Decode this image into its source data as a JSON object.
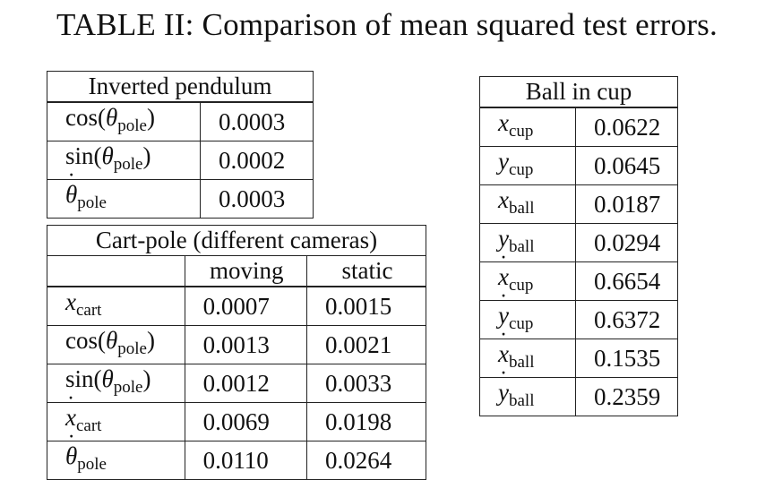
{
  "caption": "TABLE II: Comparison of mean squared test errors.",
  "inverted_pendulum": {
    "title": "Inverted pendulum",
    "rows": [
      {
        "fn": "cos",
        "var": "θ",
        "sub": "pole",
        "dot": false,
        "value": "0.0003"
      },
      {
        "fn": "sin",
        "var": "θ",
        "sub": "pole",
        "dot": false,
        "value": "0.0002"
      },
      {
        "fn": "",
        "var": "θ",
        "sub": "pole",
        "dot": true,
        "value": "0.0003"
      }
    ]
  },
  "cart_pole": {
    "title": "Cart-pole (different cameras)",
    "col_moving": "moving",
    "col_static": "static",
    "rows": [
      {
        "fn": "",
        "var": "x",
        "sub": "cart",
        "dot": false,
        "moving": "0.0007",
        "static": "0.0015"
      },
      {
        "fn": "cos",
        "var": "θ",
        "sub": "pole",
        "dot": false,
        "moving": "0.0013",
        "static": "0.0021"
      },
      {
        "fn": "sin",
        "var": "θ",
        "sub": "pole",
        "dot": false,
        "moving": "0.0012",
        "static": "0.0033"
      },
      {
        "fn": "",
        "var": "x",
        "sub": "cart",
        "dot": true,
        "moving": "0.0069",
        "static": "0.0198"
      },
      {
        "fn": "",
        "var": "θ",
        "sub": "pole",
        "dot": true,
        "moving": "0.0110",
        "static": "0.0264"
      }
    ]
  },
  "ball_in_cup": {
    "title": "Ball in cup",
    "rows": [
      {
        "fn": "",
        "var": "x",
        "sub": "cup",
        "dot": false,
        "value": "0.0622"
      },
      {
        "fn": "",
        "var": "y",
        "sub": "cup",
        "dot": false,
        "value": "0.0645"
      },
      {
        "fn": "",
        "var": "x",
        "sub": "ball",
        "dot": false,
        "value": "0.0187"
      },
      {
        "fn": "",
        "var": "y",
        "sub": "ball",
        "dot": false,
        "value": "0.0294"
      },
      {
        "fn": "",
        "var": "x",
        "sub": "cup",
        "dot": true,
        "value": "0.6654"
      },
      {
        "fn": "",
        "var": "y",
        "sub": "cup",
        "dot": true,
        "value": "0.6372"
      },
      {
        "fn": "",
        "var": "x",
        "sub": "ball",
        "dot": true,
        "value": "0.1535"
      },
      {
        "fn": "",
        "var": "y",
        "sub": "ball",
        "dot": true,
        "value": "0.2359"
      }
    ]
  }
}
